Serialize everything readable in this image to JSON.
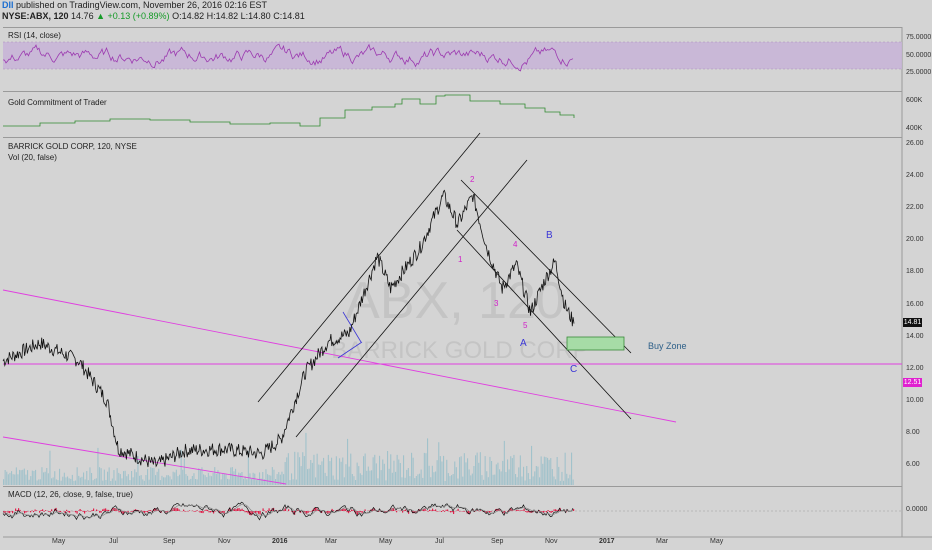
{
  "header": {
    "logo": "DII",
    "publish_line": "published on TradingView.com, November 26, 2016 02:16 EST",
    "symbol": "NYSE:ABX, 120",
    "last": "14.76",
    "change": "▲ +0.13 (+0.89%)",
    "open": "O:14.82",
    "high": "H:14.82",
    "low": "L:14.80",
    "close": "C:14.81"
  },
  "panes": {
    "rsi": {
      "title": "RSI (14, close)",
      "ticks": [
        "75.0000",
        "50.0000",
        "25.0000"
      ]
    },
    "cot": {
      "title": "Gold Commitment of Trader",
      "ticks": [
        "600K",
        "400K"
      ]
    },
    "price": {
      "title": "BARRICK GOLD CORP, 120, NYSE",
      "subtitle": "Vol (20, false)",
      "ticks": [
        "26.00",
        "24.00",
        "22.00",
        "20.00",
        "18.00",
        "16.00",
        "14.00",
        "12.00",
        "10.00",
        "8.00",
        "6.00"
      ],
      "last_price_tag": "14.81",
      "support_tag": "12.51",
      "watermark_line1": "ABX, 120",
      "watermark_line2": "BARRICK GOLD CORP"
    },
    "macd": {
      "title": "MACD (12, 26, close, 9, false, true)",
      "tick": "0.0000"
    }
  },
  "annotations": {
    "wave_1": "1",
    "wave_2": "2",
    "wave_3": "3",
    "wave_4": "4",
    "wave_5": "5",
    "wave_a": "A",
    "wave_b": "B",
    "wave_c": "C",
    "buy_zone": "Buy Zone"
  },
  "x_axis": {
    "labels": [
      "May",
      "Jul",
      "Sep",
      "Nov",
      "2016",
      "Mar",
      "May",
      "Jul",
      "Sep",
      "Nov",
      "2017",
      "Mar",
      "May"
    ]
  },
  "colors": {
    "background": "#d4d4d4",
    "rsi": "#9c3ab0",
    "rsi_band": "#c7b3d7",
    "cot": "#2f8a2f",
    "price": "#111111",
    "channel": "#111111",
    "trendline": "#e040e0",
    "wave_labels": "#d020c8",
    "abc_labels": "#3b36d6",
    "buy_zone_fill": "#a6dca6",
    "volume": "#7fb6c4",
    "macd_line": "#111111",
    "macd_hist": "#e0204a"
  },
  "chart_data": {
    "type": "line",
    "title": "BARRICK GOLD CORP, 120, NYSE",
    "xlabel": "",
    "ylabel": "",
    "x": [
      "May",
      "Jul",
      "Sep",
      "Nov",
      "2016",
      "Mar",
      "May",
      "Jul",
      "Sep",
      "Nov"
    ],
    "ylim": [
      5,
      26
    ],
    "series": [
      {
        "name": "ABX",
        "x": [
          "2015-04-01",
          "2015-05-10",
          "2015-06-20",
          "2015-07-20",
          "2015-08-01",
          "2015-09-10",
          "2015-10-10",
          "2015-11-20",
          "2015-12-31",
          "2016-01-20",
          "2016-02-15",
          "2016-03-10",
          "2016-04-01",
          "2016-05-01",
          "2016-05-15",
          "2016-06-15",
          "2016-07-10",
          "2016-07-25",
          "2016-08-10",
          "2016-08-25",
          "2016-09-10",
          "2016-09-25",
          "2016-10-10",
          "2016-10-25",
          "2016-11-05",
          "2016-11-15",
          "2016-11-25"
        ],
        "values": [
          12.5,
          13.6,
          12.5,
          10.0,
          7.0,
          6.0,
          6.9,
          7.0,
          6.7,
          7.6,
          11.8,
          13.7,
          14.2,
          19.0,
          17.0,
          19.5,
          22.8,
          21.0,
          22.8,
          19.5,
          17.0,
          18.5,
          15.5,
          17.5,
          18.7,
          16.0,
          14.81
        ]
      }
    ],
    "horizontal_levels": [
      12.51
    ],
    "last_price": 14.81,
    "indicators": {
      "rsi_ylim": [
        0,
        100
      ],
      "rsi_levels": [
        30,
        70
      ],
      "cot_ticks": [
        "600K",
        "400K"
      ],
      "macd_zero": 0
    }
  }
}
